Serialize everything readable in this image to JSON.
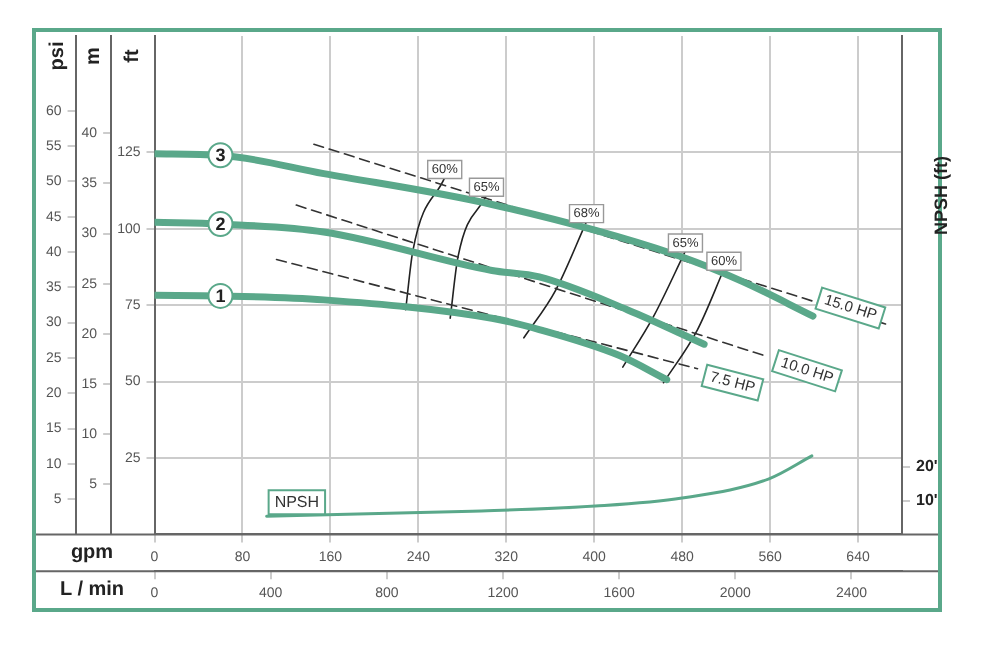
{
  "chart_data": [
    {
      "type": "line",
      "xlabel": "gpm",
      "x2label": "L / min",
      "ylabel": "ft",
      "y2label": "psi",
      "y3label": "m",
      "xlim": [
        0,
        680
      ],
      "xticks": [
        0,
        80,
        160,
        240,
        320,
        400,
        480,
        560,
        640
      ],
      "x2lim": [
        0,
        2574
      ],
      "x2ticks": [
        0,
        400,
        800,
        1200,
        1600,
        2000,
        2400
      ],
      "ylim": [
        0,
        163
      ],
      "yticks": [
        25,
        50,
        75,
        100,
        125
      ],
      "y3lim": [
        0,
        49.7
      ],
      "y3ticks": [
        5,
        10,
        15,
        20,
        25,
        30,
        35,
        40
      ],
      "y2lim": [
        0,
        70.6
      ],
      "y2ticks": [
        5,
        10,
        15,
        20,
        25,
        30,
        35,
        40,
        45,
        50,
        55,
        60
      ],
      "grid": true,
      "legend": false,
      "marker": "none",
      "series": [
        {
          "name": "3",
          "color": "#5aa88a",
          "x": [
            0,
            60,
            154,
            307,
            472,
            533,
            599
          ],
          "values": [
            124.5,
            124,
            118,
            107.9,
            91.7,
            83,
            71.4
          ]
        },
        {
          "name": "2",
          "color": "#5aa88a",
          "x": [
            0,
            60,
            154,
            307,
            350,
            430,
            500
          ],
          "values": [
            102.1,
            101.5,
            98.9,
            86.3,
            84.2,
            73.5,
            62.2
          ]
        },
        {
          "name": "1",
          "color": "#5aa88a",
          "x": [
            0,
            60,
            154,
            307,
            350,
            423,
            466
          ],
          "values": [
            78.2,
            78,
            76.7,
            70.7,
            67,
            58.5,
            50.6
          ]
        },
        {
          "name": "15.0 HP",
          "color": "#333333",
          "line_style": "dashed",
          "x": [
            145,
            665
          ],
          "values": [
            127.6,
            68.8
          ]
        },
        {
          "name": "10.0 HP",
          "color": "#333333",
          "line_style": "dashed",
          "x": [
            129,
            558
          ],
          "values": [
            107.7,
            58.1
          ]
        },
        {
          "name": "7.5 HP",
          "color": "#333333",
          "line_style": "dashed",
          "x": [
            111,
            494
          ],
          "values": [
            89.9,
            54.2
          ]
        },
        {
          "name": "60%",
          "color": "#222222",
          "x": [
            264,
            235,
            228.5
          ],
          "values": [
            116.7,
            92.7,
            73.5
          ]
        },
        {
          "name": "65%",
          "color": "#222222",
          "x": [
            302,
            276,
            269
          ],
          "values": [
            110.9,
            90.6,
            70.7
          ]
        },
        {
          "name": "68%",
          "color": "#222222",
          "x": [
            393,
            365,
            336
          ],
          "values": [
            102.3,
            79.9,
            64.3
          ]
        },
        {
          "name": "65%",
          "color": "#222222",
          "x": [
            483,
            454,
            426
          ],
          "values": [
            92.7,
            71.3,
            54.7
          ]
        },
        {
          "name": "60%",
          "color": "#222222",
          "x": [
            518,
            494,
            463
          ],
          "values": [
            86.7,
            67,
            49.6
          ]
        }
      ]
    },
    {
      "type": "line",
      "ylabel": "NPSH (ft)",
      "xlim": [
        0,
        680
      ],
      "ylim": [
        0,
        148
      ],
      "yticks": [
        {
          "value": 10,
          "label": "10'"
        },
        {
          "value": 20,
          "label": "20'"
        }
      ],
      "tick_labels": "y",
      "legend": false,
      "marker": "none",
      "series": [
        {
          "name": "NPSH",
          "color": "#5aa88a",
          "x": [
            102,
            289,
            401,
            480,
            559,
            598
          ],
          "values": [
            5.4,
            6.9,
            8.4,
            10.8,
            16.5,
            23.3
          ]
        }
      ]
    }
  ]
}
